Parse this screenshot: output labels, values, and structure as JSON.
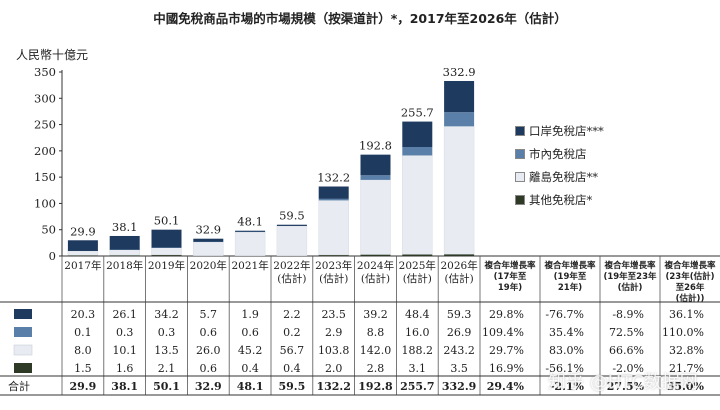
{
  "title": "中國免稅商品市場的市場規模（按渠道計）*，2017年至2026年（估計）",
  "unit_label": "人民幣十億元",
  "watermark": "知乎 @HTC数据网",
  "colors": {
    "port": "#1f3a5f",
    "downtown": "#5a7fa8",
    "island": "#e8ecf2",
    "other": "#2e3a26"
  },
  "chart_data": {
    "type": "bar",
    "stacked": true,
    "title": "中國免稅商品市場的市場規模（按渠道計）*，2017年至2026年（估計）",
    "ylabel": "人民幣十億元",
    "ylim": [
      0,
      350
    ],
    "yticks": [
      0,
      50,
      100,
      150,
      200,
      250,
      300,
      350
    ],
    "categories": [
      {
        "year": "2017年",
        "sub": ""
      },
      {
        "year": "2018年",
        "sub": ""
      },
      {
        "year": "2019年",
        "sub": ""
      },
      {
        "year": "2020年",
        "sub": ""
      },
      {
        "year": "2021年",
        "sub": ""
      },
      {
        "year": "2022年",
        "sub": "(估計)"
      },
      {
        "year": "2023年",
        "sub": "(估計)"
      },
      {
        "year": "2024年",
        "sub": "(估計)"
      },
      {
        "year": "2025年",
        "sub": "(估計)"
      },
      {
        "year": "2026年",
        "sub": "(估計)"
      }
    ],
    "series": [
      {
        "key": "other",
        "name": "其他免稅店*",
        "values": [
          1.5,
          1.6,
          2.1,
          0.6,
          0.4,
          0.4,
          2.0,
          2.8,
          3.1,
          3.5
        ]
      },
      {
        "key": "island",
        "name": "離島免稅店**",
        "values": [
          8.0,
          10.1,
          13.5,
          26.0,
          45.2,
          56.7,
          103.8,
          142.0,
          188.2,
          243.2
        ]
      },
      {
        "key": "downtown",
        "name": "市內免稅店",
        "values": [
          0.1,
          0.3,
          0.3,
          0.6,
          0.6,
          0.2,
          2.9,
          8.8,
          16.0,
          26.9
        ]
      },
      {
        "key": "port",
        "name": "口岸免稅店***",
        "values": [
          20.3,
          26.1,
          34.2,
          5.7,
          1.9,
          2.2,
          23.5,
          39.2,
          48.4,
          59.3
        ]
      }
    ],
    "totals": [
      29.9,
      38.1,
      50.1,
      32.9,
      48.1,
      59.5,
      132.2,
      192.8,
      255.7,
      332.9
    ],
    "legend_order": [
      "port",
      "downtown",
      "island",
      "other"
    ],
    "cagr_headers": [
      [
        "複合年增長率",
        "(17年至",
        "19年)"
      ],
      [
        "複合年增長率",
        "(19年至",
        "21年)"
      ],
      [
        "複合年增長率",
        "(19年至23年",
        "(估計)"
      ],
      [
        "複合年增長率",
        "(23年(估計)",
        "至26年",
        "(估計))"
      ]
    ],
    "table_rows": [
      {
        "key": "port",
        "label": "",
        "values": [
          "20.3",
          "26.1",
          "34.2",
          "5.7",
          "1.9",
          "2.2",
          "23.5",
          "39.2",
          "48.4",
          "59.3"
        ],
        "cagr": [
          "29.8%",
          "-76.7%",
          "-8.9%",
          "36.1%"
        ]
      },
      {
        "key": "downtown",
        "label": "",
        "values": [
          "0.1",
          "0.3",
          "0.3",
          "0.6",
          "0.6",
          "0.2",
          "2.9",
          "8.8",
          "16.0",
          "26.9"
        ],
        "cagr": [
          "109.4%",
          "35.4%",
          "72.5%",
          "110.0%"
        ]
      },
      {
        "key": "island",
        "label": "",
        "values": [
          "8.0",
          "10.1",
          "13.5",
          "26.0",
          "45.2",
          "56.7",
          "103.8",
          "142.0",
          "188.2",
          "243.2"
        ],
        "cagr": [
          "29.7%",
          "83.0%",
          "66.6%",
          "32.8%"
        ]
      },
      {
        "key": "other",
        "label": "",
        "values": [
          "1.5",
          "1.6",
          "2.1",
          "0.6",
          "0.4",
          "0.4",
          "2.0",
          "2.8",
          "3.1",
          "3.5"
        ],
        "cagr": [
          "16.9%",
          "-56.1%",
          "-2.0%",
          "21.7%"
        ]
      },
      {
        "key": "total",
        "label": "合計",
        "values": [
          "29.9",
          "38.1",
          "50.1",
          "32.9",
          "48.1",
          "59.5",
          "132.2",
          "192.8",
          "255.7",
          "332.9"
        ],
        "cagr": [
          "29.4%",
          "-2.1%",
          "27.5%",
          "35.0%"
        ]
      }
    ]
  }
}
